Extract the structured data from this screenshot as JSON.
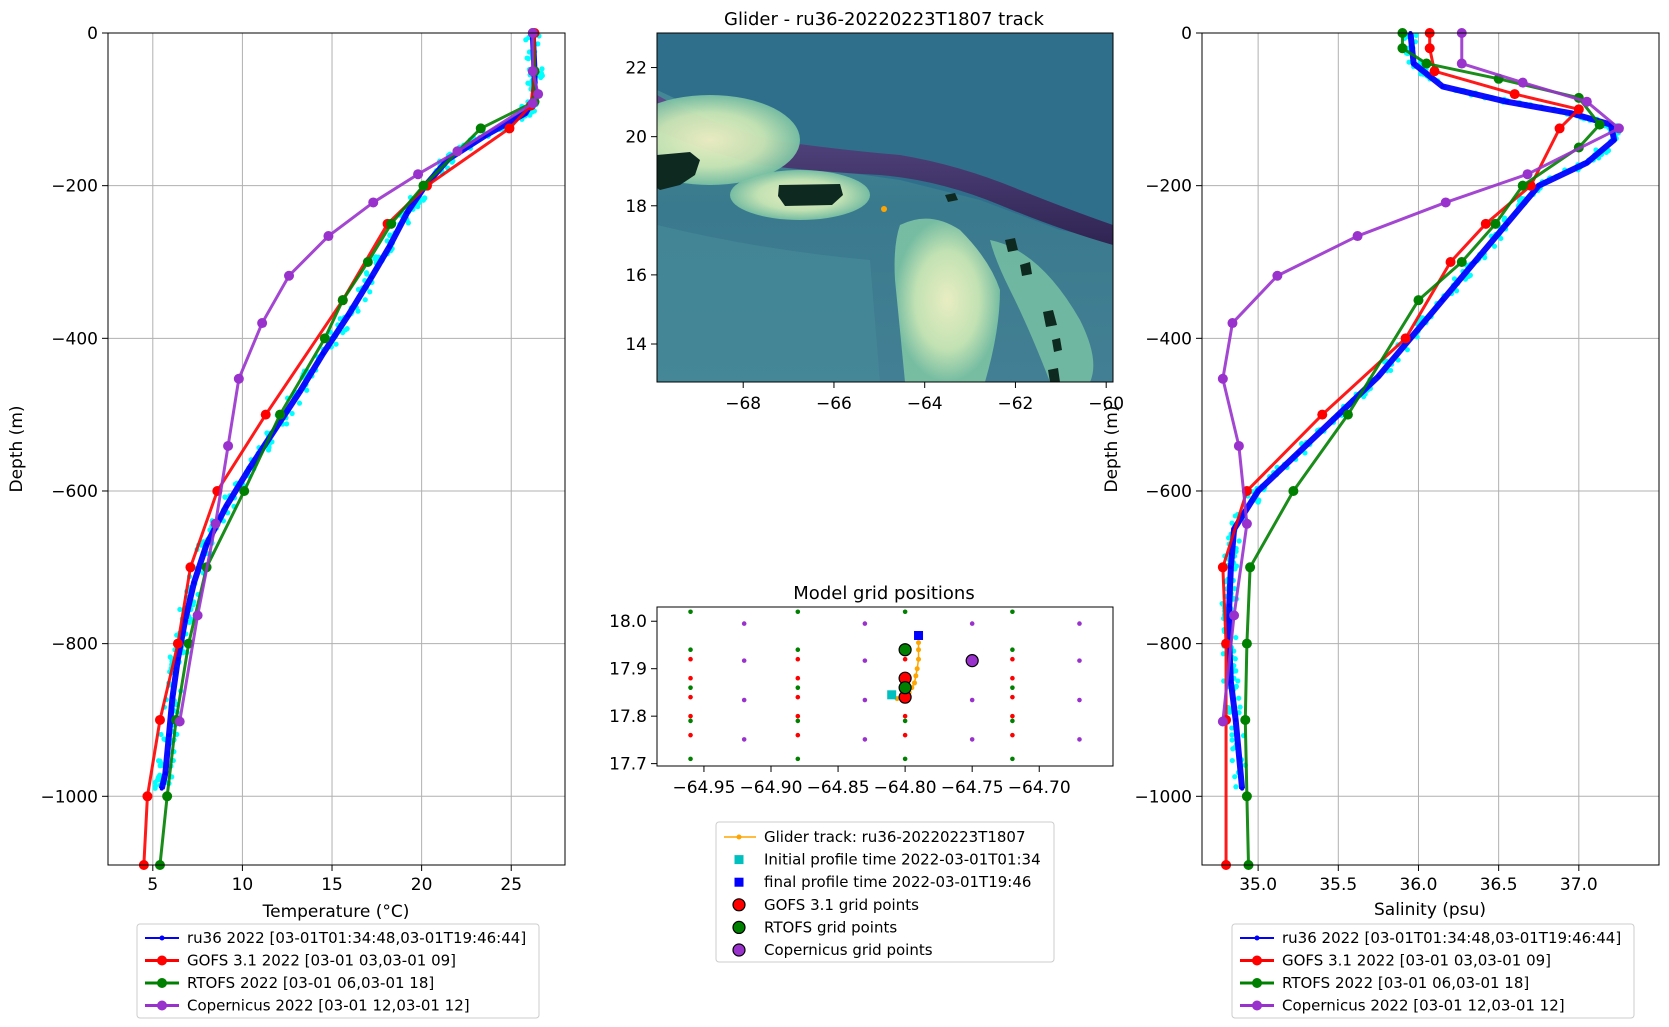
{
  "temperature_panel": {
    "xlabel": "Temperature (°C)",
    "ylabel": "Depth (m)",
    "xticks": [
      "5",
      "10",
      "15",
      "20",
      "25"
    ],
    "yticks": [
      "0",
      "−200",
      "−400",
      "−600",
      "−800",
      "−1000"
    ]
  },
  "salinity_panel": {
    "xlabel": "Salinity (psu)",
    "ylabel": "Depth (m)",
    "xticks": [
      "35.0",
      "35.5",
      "36.0",
      "36.5",
      "37.0"
    ],
    "yticks": [
      "0",
      "−200",
      "−400",
      "−600",
      "−800",
      "−1000"
    ]
  },
  "profile_legend": [
    "ru36 2022 [03-01T01:34:48,03-01T19:46:44]",
    "GOFS 3.1 2022 [03-01 03,03-01 09]",
    "RTOFS 2022 [03-01 06,03-01 18]",
    "Copernicus 2022 [03-01 12,03-01 12]"
  ],
  "map_panel": {
    "title": "Glider - ru36-20220223T1807 track",
    "xticks": [
      "−68",
      "−66",
      "−64",
      "−62",
      "−60"
    ],
    "yticks": [
      "22",
      "20",
      "18",
      "16",
      "14"
    ]
  },
  "grid_panel": {
    "title": "Model grid positions",
    "xticks": [
      "−64.95",
      "−64.90",
      "−64.85",
      "−64.80",
      "−64.75",
      "−64.70"
    ],
    "yticks": [
      "18.0",
      "17.9",
      "17.8",
      "17.7"
    ]
  },
  "map_legend": [
    "Glider track: ru36-20220223T1807",
    "Initial profile time 2022-03-01T01:34",
    "final profile time 2022-03-01T19:46",
    "GOFS 3.1 grid points",
    "RTOFS grid points",
    "Copernicus grid points"
  ],
  "colors": {
    "glider": "#0000ff",
    "glider_raw": "#00ffff",
    "gofs": "#ff0000",
    "rtofs": "#008000",
    "copernicus": "#9932cc",
    "track": "#ffa500",
    "initial": "#00bfbf"
  },
  "chart_data": [
    {
      "type": "line",
      "title": "",
      "xlabel": "Temperature (°C)",
      "ylabel": "Depth (m)",
      "xlim": [
        2.5,
        28
      ],
      "ylim": [
        -1090,
        0
      ],
      "series": [
        {
          "name": "ru36 2022 [03-01T01:34:48,03-01T19:46:44]",
          "x": [
            26.2,
            26.3,
            26.3,
            25.8,
            23.5,
            21.5,
            20.2,
            19.2,
            18.2,
            17.2,
            15.9,
            14.5,
            13.2,
            11.8,
            10.4,
            9.1,
            8.0,
            7.3,
            6.8,
            6.4,
            6.1,
            5.9,
            5.7,
            5.5
          ],
          "y": [
            0,
            -50,
            -85,
            -105,
            -135,
            -165,
            -200,
            -235,
            -280,
            -320,
            -370,
            -420,
            -470,
            -520,
            -570,
            -620,
            -670,
            -720,
            -770,
            -820,
            -870,
            -920,
            -970,
            -990
          ]
        },
        {
          "name": "GOFS 3.1 2022 [03-01 03,03-01 09]",
          "x": [
            26.3,
            26.3,
            26.1,
            24.9,
            20.3,
            18.1,
            15.6,
            11.3,
            8.6,
            7.1,
            6.4,
            5.4,
            4.7,
            4.5
          ],
          "y": [
            0,
            -50,
            -95,
            -125,
            -200,
            -250,
            -350,
            -500,
            -600,
            -700,
            -800,
            -900,
            -1000,
            -1090
          ]
        },
        {
          "name": "RTOFS 2022 [03-01 06,03-01 18]",
          "x": [
            26.2,
            26.3,
            26.3,
            23.3,
            20.1,
            18.3,
            17.0,
            15.6,
            14.6,
            12.1,
            10.1,
            8.0,
            7.0,
            6.3,
            5.8,
            5.4
          ],
          "y": [
            0,
            -50,
            -90,
            -125,
            -200,
            -250,
            -300,
            -350,
            -400,
            -500,
            -600,
            -700,
            -800,
            -900,
            -1000,
            -1090
          ]
        },
        {
          "name": "Copernicus 2022 [03-01 12,03-01 12]",
          "x": [
            26.2,
            26.2,
            26.5,
            26.2,
            22.0,
            19.8,
            17.3,
            14.8,
            12.6,
            11.1,
            9.8,
            9.2,
            8.5,
            7.5,
            6.5
          ],
          "y": [
            0,
            -50,
            -80,
            -92,
            -155,
            -185,
            -222,
            -266,
            -318,
            -380,
            -453,
            -541,
            -643,
            -763,
            -902
          ]
        }
      ]
    },
    {
      "type": "line",
      "title": "",
      "xlabel": "Salinity (psu)",
      "ylabel": "Depth (m)",
      "xlim": [
        34.65,
        37.5
      ],
      "ylim": [
        -1090,
        0
      ],
      "series": [
        {
          "name": "ru36 2022 [03-01T01:34:48,03-01T19:46:44]",
          "x": [
            35.95,
            35.97,
            36.15,
            36.55,
            36.95,
            37.2,
            37.22,
            37.05,
            36.75,
            36.55,
            36.35,
            36.15,
            35.95,
            35.75,
            35.5,
            35.25,
            35.0,
            34.85,
            34.83,
            34.82,
            34.82,
            34.83,
            34.86,
            34.9
          ],
          "y": [
            0,
            -40,
            -70,
            -90,
            -105,
            -120,
            -140,
            -170,
            -200,
            -250,
            -300,
            -350,
            -400,
            -450,
            -500,
            -550,
            -600,
            -650,
            -700,
            -750,
            -800,
            -850,
            -900,
            -990
          ]
        },
        {
          "name": "GOFS 3.1 2022 [03-01 03,03-01 09]",
          "x": [
            36.07,
            36.07,
            36.1,
            36.6,
            37.0,
            36.88,
            36.7,
            36.42,
            36.2,
            35.92,
            35.4,
            34.93,
            34.78,
            34.8,
            34.8,
            34.8
          ],
          "y": [
            0,
            -20,
            -50,
            -80,
            -100,
            -125,
            -200,
            -250,
            -300,
            -400,
            -500,
            -600,
            -700,
            -800,
            -900,
            -1090
          ]
        },
        {
          "name": "RTOFS 2022 [03-01 06,03-01 18]",
          "x": [
            35.9,
            35.9,
            36.05,
            36.5,
            37.0,
            37.13,
            37.0,
            36.65,
            36.48,
            36.27,
            36.0,
            35.56,
            35.22,
            34.95,
            34.93,
            34.92,
            34.93,
            34.94
          ],
          "y": [
            0,
            -20,
            -40,
            -60,
            -85,
            -120,
            -150,
            -200,
            -250,
            -300,
            -350,
            -500,
            -600,
            -700,
            -800,
            -900,
            -1000,
            -1090
          ]
        },
        {
          "name": "Copernicus 2022 [03-01 12,03-01 12]",
          "x": [
            36.27,
            36.27,
            36.65,
            37.05,
            37.25,
            36.68,
            36.17,
            35.62,
            35.12,
            34.84,
            34.78,
            34.88,
            34.93,
            34.85,
            34.78
          ],
          "y": [
            0,
            -40,
            -65,
            -90,
            -125,
            -185,
            -222,
            -266,
            -318,
            -380,
            -453,
            -541,
            -643,
            -763,
            -902
          ]
        }
      ]
    },
    {
      "type": "scatter",
      "title": "Model grid positions",
      "xlim": [
        -64.985,
        -64.645
      ],
      "ylim": [
        17.695,
        18.03
      ],
      "series": [
        {
          "name": "Glider track: ru36-20220223T1807",
          "x": [
            -64.79,
            -64.79,
            -64.79,
            -64.791,
            -64.792,
            -64.793,
            -64.795,
            -64.797,
            -64.8,
            -64.803,
            -64.806
          ],
          "y": [
            17.955,
            17.94,
            17.92,
            17.9,
            17.885,
            17.87,
            17.86,
            17.85,
            17.845,
            17.84,
            17.837
          ]
        },
        {
          "name": "Initial profile time 2022-03-01T01:34",
          "x": [
            -64.81
          ],
          "y": [
            17.845
          ]
        },
        {
          "name": "final profile time 2022-03-01T19:46",
          "x": [
            -64.79
          ],
          "y": [
            17.97
          ]
        },
        {
          "name": "GOFS 3.1 grid points",
          "x": [
            -64.8,
            -64.8
          ],
          "y": [
            17.88,
            17.84
          ]
        },
        {
          "name": "RTOFS grid points",
          "x": [
            -64.8,
            -64.8
          ],
          "y": [
            17.94,
            17.86
          ]
        },
        {
          "name": "Copernicus grid points",
          "x": [
            -64.75
          ],
          "y": [
            17.917
          ]
        }
      ]
    }
  ]
}
